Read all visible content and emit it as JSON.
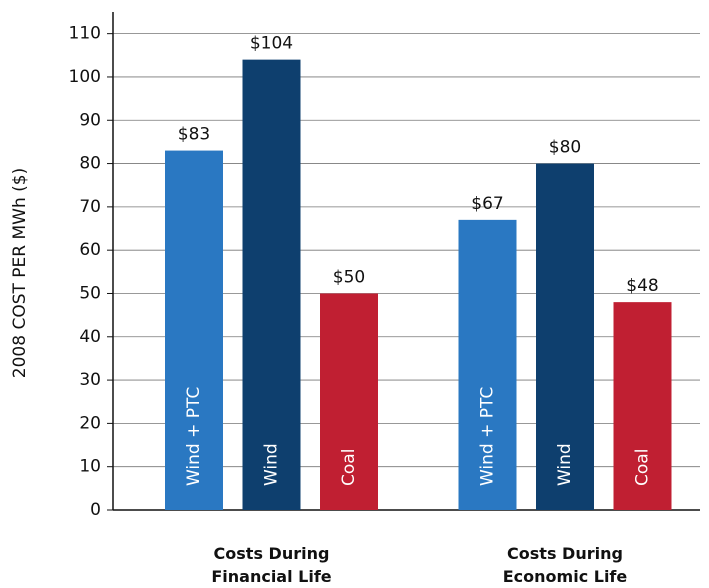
{
  "chart_data": {
    "type": "bar",
    "y_label": "2008 COST PER MWh ($)",
    "categories": [
      "Costs During Financial Life",
      "Costs During Economic Life"
    ],
    "series": [
      {
        "name": "Wind + PTC",
        "color": "#2a78c2",
        "values": [
          83,
          67
        ],
        "value_labels": [
          "$83",
          "$67"
        ]
      },
      {
        "name": "Wind",
        "color": "#0e3f6e",
        "values": [
          104,
          80
        ],
        "value_labels": [
          "$104",
          "$80"
        ]
      },
      {
        "name": "Coal",
        "color": "#c01f32",
        "values": [
          50,
          48
        ],
        "value_labels": [
          "$50",
          "$48"
        ]
      }
    ],
    "ylim": [
      0,
      115
    ],
    "yticks": [
      0,
      10,
      20,
      30,
      40,
      50,
      60,
      70,
      80,
      90,
      100,
      110
    ],
    "grid": true
  }
}
